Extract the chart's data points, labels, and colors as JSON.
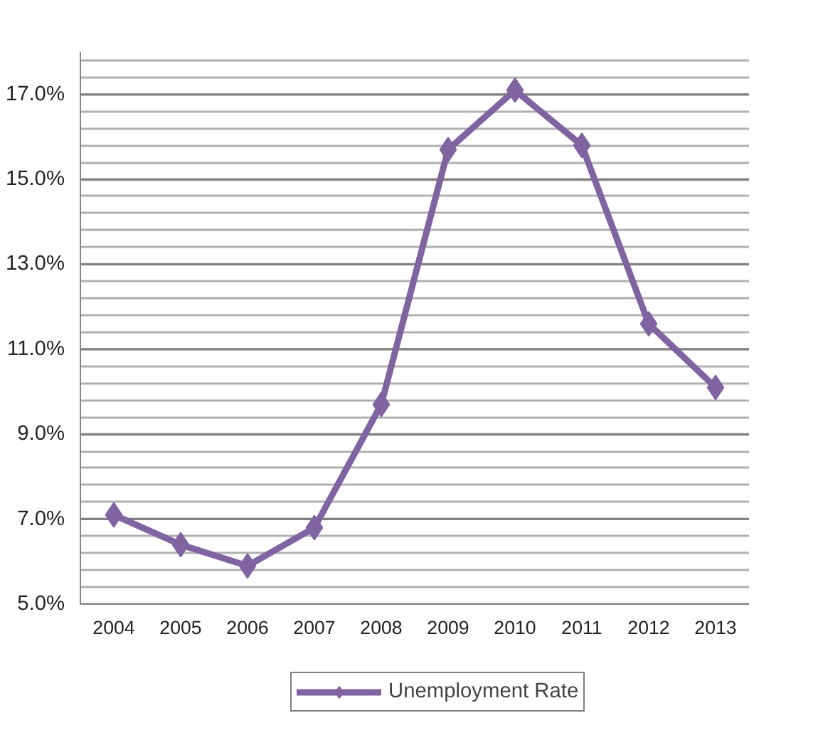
{
  "chart_data": {
    "type": "line",
    "categories": [
      "2004",
      "2005",
      "2006",
      "2007",
      "2008",
      "2009",
      "2010",
      "2011",
      "2012",
      "2013"
    ],
    "series": [
      {
        "name": "Unemployment Rate",
        "color": "#8064a2",
        "values": [
          7.1,
          6.4,
          5.9,
          6.8,
          9.7,
          15.7,
          17.1,
          15.8,
          11.6,
          10.1
        ]
      }
    ],
    "ylim": [
      5,
      18
    ],
    "yticks": [
      {
        "value": 5,
        "label": "5.0%"
      },
      {
        "value": 5.4,
        "label": null
      },
      {
        "value": 5.8,
        "label": null
      },
      {
        "value": 6.2,
        "label": null
      },
      {
        "value": 6.6,
        "label": null
      },
      {
        "value": 7,
        "label": "7.0%"
      },
      {
        "value": 7.4,
        "label": null
      },
      {
        "value": 7.8,
        "label": null
      },
      {
        "value": 8.2,
        "label": null
      },
      {
        "value": 8.6,
        "label": null
      },
      {
        "value": 9,
        "label": "9.0%"
      },
      {
        "value": 9.4,
        "label": null
      },
      {
        "value": 9.8,
        "label": null
      },
      {
        "value": 10.2,
        "label": null
      },
      {
        "value": 10.6,
        "label": null
      },
      {
        "value": 11,
        "label": "11.0%"
      },
      {
        "value": 11.4,
        "label": null
      },
      {
        "value": 11.8,
        "label": null
      },
      {
        "value": 12.2,
        "label": null
      },
      {
        "value": 12.6,
        "label": null
      },
      {
        "value": 13,
        "label": "13.0%"
      },
      {
        "value": 13.4,
        "label": null
      },
      {
        "value": 13.8,
        "label": null
      },
      {
        "value": 14.2,
        "label": null
      },
      {
        "value": 14.6,
        "label": null
      },
      {
        "value": 15,
        "label": "15.0%"
      },
      {
        "value": 15.4,
        "label": null
      },
      {
        "value": 15.8,
        "label": null
      },
      {
        "value": 16.2,
        "label": null
      },
      {
        "value": 16.6,
        "label": null
      },
      {
        "value": 17,
        "label": "17.0%"
      },
      {
        "value": 17.4,
        "label": null
      },
      {
        "value": 17.8,
        "label": null
      }
    ],
    "grid": "y",
    "legend": "bottom",
    "marker": "diamond",
    "line_style": "solid"
  }
}
